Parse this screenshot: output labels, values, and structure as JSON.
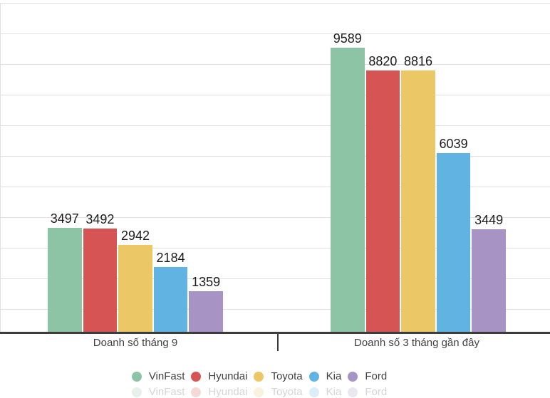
{
  "chart_data": {
    "type": "bar",
    "title": "",
    "categories": [
      "Doanh số tháng 9",
      "Doanh số 3 tháng gần đây"
    ],
    "series": [
      {
        "name": "VinFast",
        "color": "#8cc4a5",
        "values": [
          3497,
          9589
        ]
      },
      {
        "name": "Hyundai",
        "color": "#d65454",
        "values": [
          3492,
          8820
        ]
      },
      {
        "name": "Toyota",
        "color": "#ecc765",
        "values": [
          2942,
          8816
        ]
      },
      {
        "name": "Kia",
        "color": "#61b4e2",
        "values": [
          2184,
          6039
        ]
      },
      {
        "name": "Ford",
        "color": "#a894c4",
        "values": [
          1359,
          3449
        ]
      }
    ],
    "xlabel": "",
    "ylabel": "",
    "ylim": [
      0,
      11200
    ],
    "grid": true,
    "gridline_color": "#e0e0e0",
    "axis_line_color": "#3c3c3c",
    "value_label_color": "#1c1c1c",
    "category_label_color": "#424242",
    "legend_position": "bottom",
    "value_labels": true
  }
}
